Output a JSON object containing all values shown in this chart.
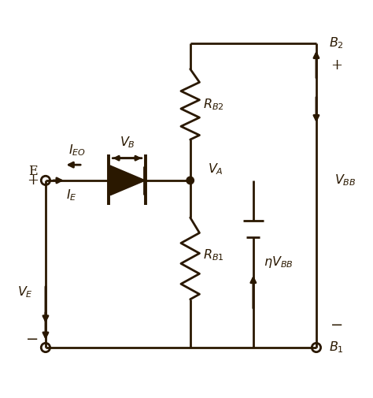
{
  "bg_color": "#ffffff",
  "line_color": "#2a1800",
  "line_width": 2.0,
  "fig_width": 4.74,
  "fig_height": 5.05
}
